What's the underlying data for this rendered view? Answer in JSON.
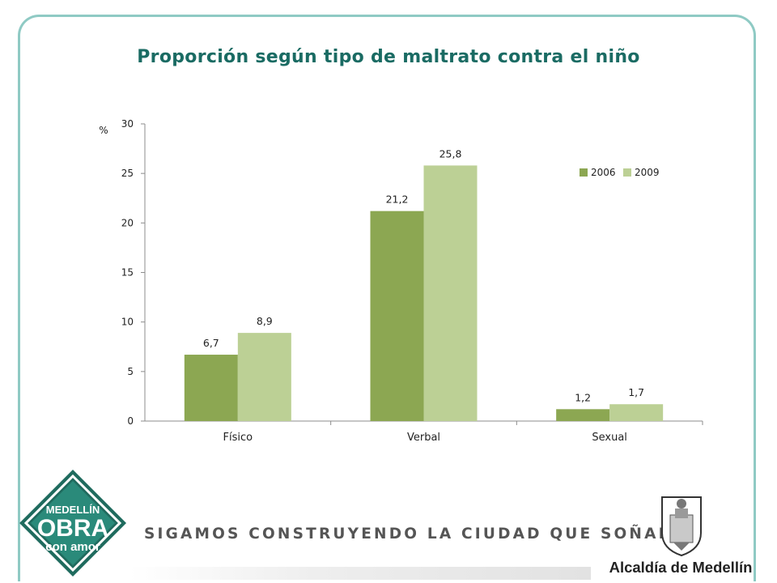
{
  "slide": {
    "title": "Proporción según tipo de maltrato contra el niño",
    "tagline": "SIGAMOS CONSTRUYENDO LA CIUDAD QUE SOÑAMOS",
    "logo_left_lines": [
      "MEDELLÍN",
      "OBRA",
      "con amor"
    ],
    "logo_right_text": "Alcaldía de Medellín"
  },
  "chart_data": {
    "type": "bar",
    "title": "Proporción según tipo de maltrato contra el niño",
    "ylabel": "%",
    "xlabel": "",
    "ylim": [
      0,
      30
    ],
    "yticks": [
      0,
      5,
      10,
      15,
      20,
      25,
      30
    ],
    "categories": [
      "Físico",
      "Verbal",
      "Sexual"
    ],
    "series": [
      {
        "name": "2006",
        "values": [
          6.7,
          21.2,
          1.2
        ],
        "labels": [
          "6,7",
          "21,2",
          "1,2"
        ],
        "color": "#8ca752"
      },
      {
        "name": "2009",
        "values": [
          8.9,
          25.8,
          1.7
        ],
        "labels": [
          "8,9",
          "25,8",
          "1,7"
        ],
        "color": "#bcd095"
      }
    ],
    "legend": "top-right",
    "grid": false
  }
}
